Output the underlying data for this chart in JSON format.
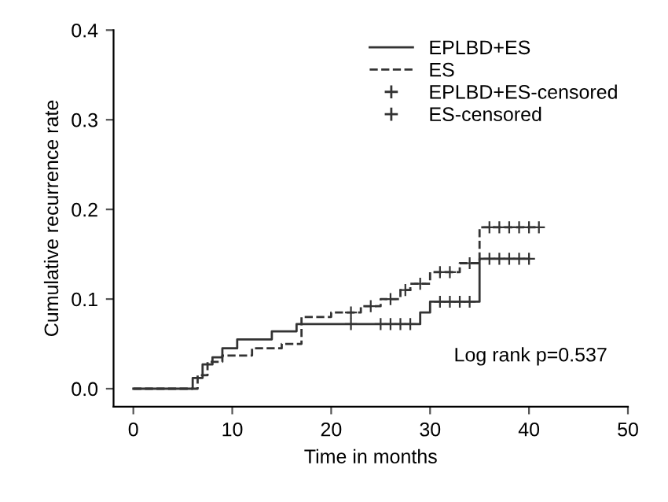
{
  "chart_data": {
    "type": "step",
    "xlabel": "Time in months",
    "ylabel": "Cumulative recurrence rate",
    "xlim": [
      -2,
      50
    ],
    "ylim": [
      -0.02,
      0.4
    ],
    "xticks": [
      0,
      10,
      20,
      30,
      40,
      50
    ],
    "yticks": [
      {
        "value": 0,
        "label": "0.0"
      },
      0.1,
      0.2,
      0.3,
      0.4
    ],
    "series": [
      {
        "name": "EPLBD+ES",
        "color": "#333333",
        "line_style": "solid",
        "x": [
          0,
          6,
          7,
          8,
          9,
          10.5,
          14,
          16.5,
          29,
          30,
          35,
          40
        ],
        "values": [
          0,
          0.012,
          0.027,
          0.035,
          0.045,
          0.055,
          0.064,
          0.072,
          0.085,
          0.097,
          0.145,
          0.145
        ]
      },
      {
        "name": "ES",
        "color": "#333333",
        "line_style": "dashed",
        "x": [
          0,
          6.5,
          7.5,
          9,
          12,
          15,
          17,
          20,
          23,
          25,
          27,
          28,
          30,
          33,
          35,
          41
        ],
        "values": [
          0,
          0.015,
          0.03,
          0.037,
          0.045,
          0.05,
          0.08,
          0.085,
          0.092,
          0.1,
          0.11,
          0.117,
          0.13,
          0.14,
          0.18,
          0.18
        ]
      },
      {
        "name": "EPLBD+ES-censored",
        "type": "scatter",
        "marker": "cross",
        "color": "#333333",
        "x": [
          22,
          25,
          26,
          27,
          28,
          31,
          32,
          33,
          34,
          36,
          37,
          38,
          39,
          40
        ],
        "values": [
          0.072,
          0.072,
          0.072,
          0.072,
          0.072,
          0.097,
          0.097,
          0.097,
          0.097,
          0.145,
          0.145,
          0.145,
          0.145,
          0.145
        ]
      },
      {
        "name": "ES-censored",
        "type": "scatter",
        "marker": "cross",
        "color": "#333333",
        "x": [
          22,
          24,
          26,
          27.5,
          29,
          31,
          32,
          34,
          36,
          37,
          38,
          39,
          40,
          41
        ],
        "values": [
          0.085,
          0.092,
          0.1,
          0.11,
          0.117,
          0.13,
          0.13,
          0.14,
          0.18,
          0.18,
          0.18,
          0.18,
          0.18,
          0.18
        ]
      }
    ],
    "annotations": [
      "Log rank p=0.537"
    ],
    "legend": "top right",
    "grid": false
  }
}
